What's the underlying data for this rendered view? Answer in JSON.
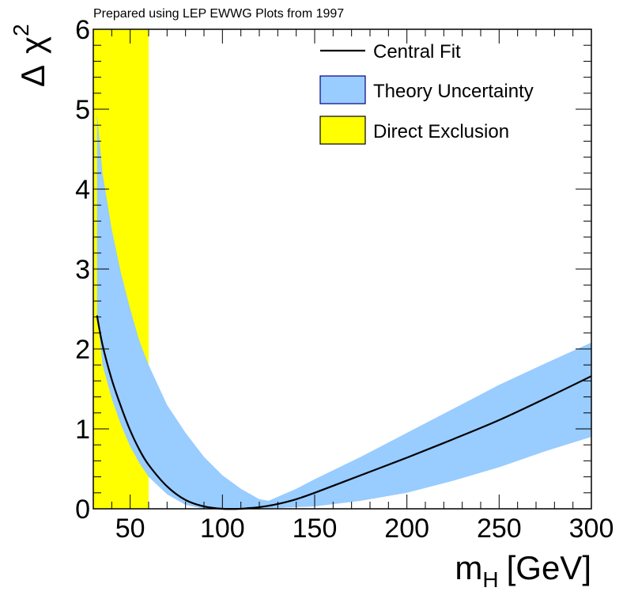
{
  "chart_data": {
    "type": "line",
    "header": "Prepared using LEP EWWG Plots from 1997",
    "xlabel": {
      "main": "m",
      "sub": "H",
      "unit": "[GeV]"
    },
    "ylabel": {
      "delta": "Δ",
      "chi": "χ",
      "sup": "2"
    },
    "xlim": [
      30,
      300
    ],
    "ylim": [
      0,
      6
    ],
    "x_major_ticks": [
      50,
      100,
      150,
      200,
      250,
      300
    ],
    "x_tick_labels": [
      "50",
      "100",
      "150",
      "200",
      "250",
      "300"
    ],
    "y_major_ticks": [
      0,
      1,
      2,
      3,
      4,
      5,
      6
    ],
    "y_tick_labels": [
      "0",
      "1",
      "2",
      "3",
      "4",
      "5",
      "6"
    ],
    "x_minor_step": 10,
    "y_minor_step": 0.2,
    "direct_exclusion": {
      "x": [
        30,
        60
      ],
      "color": "#ffff00"
    },
    "series": [
      {
        "name": "Central Fit",
        "color": "#000000",
        "x": [
          32,
          35,
          40,
          45,
          50,
          55,
          60,
          70,
          80,
          90,
          100,
          110,
          115,
          120,
          130,
          140,
          150,
          175,
          200,
          225,
          250,
          275,
          300
        ],
        "values": [
          2.42,
          2.05,
          1.62,
          1.28,
          0.98,
          0.74,
          0.55,
          0.28,
          0.11,
          0.03,
          0.0,
          0.0,
          0.01,
          0.02,
          0.06,
          0.12,
          0.2,
          0.42,
          0.64,
          0.87,
          1.11,
          1.38,
          1.66
        ]
      }
    ],
    "theory_band": {
      "name": "Theory Uncertainty",
      "color": "#99ccff",
      "x": [
        32,
        35,
        40,
        45,
        50,
        55,
        60,
        70,
        80,
        90,
        100,
        110,
        120,
        125,
        130,
        140,
        150,
        175,
        200,
        225,
        250,
        275,
        300
      ],
      "upper": [
        4.95,
        4.2,
        3.5,
        2.95,
        2.5,
        2.1,
        1.8,
        1.3,
        0.95,
        0.65,
        0.42,
        0.25,
        0.12,
        0.1,
        0.15,
        0.25,
        0.37,
        0.65,
        0.95,
        1.25,
        1.55,
        1.82,
        2.08
      ],
      "lower": [
        2.45,
        1.8,
        1.38,
        1.05,
        0.78,
        0.57,
        0.4,
        0.18,
        0.05,
        0.0,
        0.0,
        0.0,
        0.0,
        0.0,
        0.01,
        0.02,
        0.03,
        0.1,
        0.2,
        0.35,
        0.52,
        0.72,
        0.9
      ]
    },
    "legend": {
      "position": "top-right",
      "entries": [
        {
          "label": "Central Fit",
          "kind": "line",
          "color": "#000000"
        },
        {
          "label": "Theory Uncertainty",
          "kind": "box",
          "color": "#99ccff",
          "border": "#000080"
        },
        {
          "label": "Direct Exclusion",
          "kind": "box",
          "color": "#ffff00",
          "border": "#000000"
        }
      ]
    }
  }
}
